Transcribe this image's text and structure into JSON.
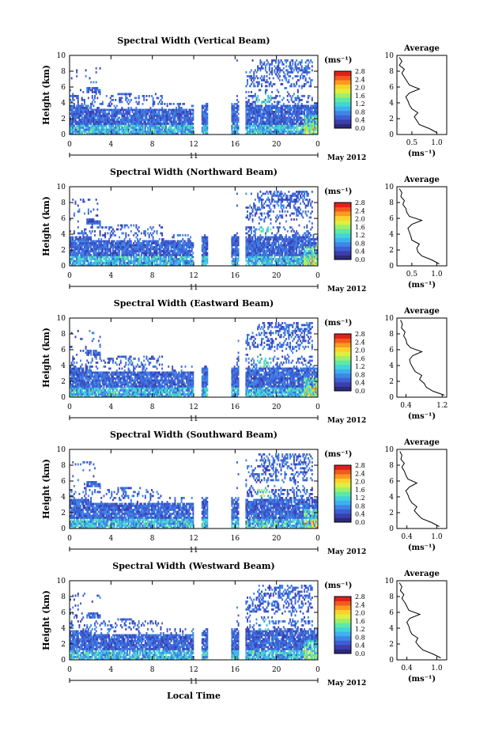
{
  "chart_data": [
    {
      "type": "heatmap",
      "title": "Spectral Width (Vertical Beam)",
      "ylabel": "Height (km)",
      "ylim": [
        0,
        10
      ],
      "y_ticks": [
        "0",
        "2",
        "4",
        "6",
        "8",
        "10"
      ],
      "xlim": [
        0,
        24
      ],
      "x_ticks": [
        "0",
        "4",
        "8",
        "12",
        "16",
        "20",
        "0"
      ],
      "date_labels": {
        "day": "11",
        "month_year": "May 2012"
      },
      "colorbar": {
        "unit": "(ms⁻¹)",
        "ticks": [
          "0.0",
          "0.4",
          "0.8",
          "1.2",
          "1.6",
          "2.0",
          "2.4",
          "2.8"
        ],
        "range": [
          0,
          2.8
        ]
      },
      "profile": {
        "title": "Average",
        "xlabel": "(ms⁻¹)",
        "x_ticks": [
          "0.5",
          "1.0"
        ],
        "xlim": [
          0.2,
          1.2
        ],
        "y": [
          0.25,
          0.75,
          1.25,
          1.75,
          2.25,
          2.75,
          3.25,
          3.75,
          4.25,
          4.75,
          5.25,
          5.75,
          6.25,
          6.75,
          7.25,
          7.75,
          8.25,
          8.75,
          9.25,
          9.75
        ],
        "x": [
          1.0,
          0.85,
          0.65,
          0.6,
          0.55,
          0.62,
          0.5,
          0.45,
          0.42,
          0.38,
          0.45,
          0.65,
          0.45,
          0.4,
          0.35,
          0.3,
          0.35,
          0.25,
          0.3,
          0.25
        ]
      }
    },
    {
      "type": "heatmap",
      "title": "Spectral Width (Northward Beam)",
      "ylabel": "Height (km)",
      "ylim": [
        0,
        10
      ],
      "y_ticks": [
        "0",
        "2",
        "4",
        "6",
        "8",
        "10"
      ],
      "xlim": [
        0,
        24
      ],
      "x_ticks": [
        "0",
        "4",
        "8",
        "12",
        "16",
        "20",
        "0"
      ],
      "date_labels": {
        "day": "11",
        "month_year": "May 2012"
      },
      "colorbar": {
        "unit": "(ms⁻¹)",
        "ticks": [
          "0.0",
          "0.4",
          "0.8",
          "1.2",
          "1.6",
          "2.0",
          "2.4",
          "2.8"
        ],
        "range": [
          0,
          2.8
        ]
      },
      "profile": {
        "title": "Average",
        "xlabel": "(ms⁻¹)",
        "x_ticks": [
          "0.5",
          "1.0"
        ],
        "xlim": [
          0.2,
          1.2
        ],
        "y": [
          0.25,
          0.75,
          1.25,
          1.75,
          2.25,
          2.75,
          3.25,
          3.75,
          4.25,
          4.75,
          5.25,
          5.75,
          6.25,
          6.75,
          7.25,
          7.75,
          8.25,
          8.75,
          9.25,
          9.75
        ],
        "x": [
          1.05,
          0.9,
          0.7,
          0.62,
          0.6,
          0.65,
          0.5,
          0.48,
          0.45,
          0.42,
          0.5,
          0.7,
          0.45,
          0.4,
          0.38,
          0.32,
          0.35,
          0.28,
          0.3,
          0.25
        ]
      }
    },
    {
      "type": "heatmap",
      "title": "Spectral Width (Eastward Beam)",
      "ylabel": "Height (km)",
      "ylim": [
        0,
        10
      ],
      "y_ticks": [
        "0",
        "2",
        "4",
        "6",
        "8",
        "10"
      ],
      "xlim": [
        0,
        24
      ],
      "x_ticks": [
        "0",
        "4",
        "8",
        "12",
        "16",
        "20",
        "0"
      ],
      "date_labels": {
        "day": "11",
        "month_year": "May 2012"
      },
      "colorbar": {
        "unit": "(ms⁻¹)",
        "ticks": [
          "0.0",
          "0.4",
          "0.8",
          "1.2",
          "1.6",
          "2.0",
          "2.4",
          "2.8"
        ],
        "range": [
          0,
          2.8
        ]
      },
      "profile": {
        "title": "Average",
        "xlabel": "(ms⁻¹)",
        "x_ticks": [
          "0.4",
          "1.2"
        ],
        "xlim": [
          0.2,
          1.3
        ],
        "y": [
          0.25,
          0.75,
          1.25,
          1.75,
          2.25,
          2.75,
          3.25,
          3.75,
          4.25,
          4.75,
          5.25,
          5.75,
          6.25,
          6.75,
          7.25,
          7.75,
          8.25,
          8.75,
          9.25,
          9.75
        ],
        "x": [
          1.25,
          1.0,
          0.85,
          0.8,
          0.7,
          0.75,
          0.6,
          0.55,
          0.5,
          0.48,
          0.55,
          0.75,
          0.5,
          0.42,
          0.4,
          0.35,
          0.38,
          0.3,
          0.32,
          0.28
        ]
      }
    },
    {
      "type": "heatmap",
      "title": "Spectral Width (Southward Beam)",
      "ylabel": "Height (km)",
      "ylim": [
        0,
        10
      ],
      "y_ticks": [
        "0",
        "2",
        "4",
        "6",
        "8",
        "10"
      ],
      "xlim": [
        0,
        24
      ],
      "x_ticks": [
        "0",
        "4",
        "8",
        "12",
        "16",
        "20",
        "0"
      ],
      "date_labels": {
        "day": "11",
        "month_year": "May 2012"
      },
      "colorbar": {
        "unit": "(ms⁻¹)",
        "ticks": [
          "0.0",
          "0.4",
          "0.8",
          "1.2",
          "1.6",
          "2.0",
          "2.4",
          "2.8"
        ],
        "range": [
          0,
          2.8
        ]
      },
      "profile": {
        "title": "Average",
        "xlabel": "(ms⁻¹)",
        "x_ticks": [
          "0.4",
          "1.0"
        ],
        "xlim": [
          0.2,
          1.2
        ],
        "y": [
          0.25,
          0.75,
          1.25,
          1.75,
          2.25,
          2.75,
          3.25,
          3.75,
          4.25,
          4.75,
          5.25,
          5.75,
          6.25,
          6.75,
          7.25,
          7.75,
          8.25,
          8.75,
          9.25,
          9.75
        ],
        "x": [
          1.05,
          0.9,
          0.7,
          0.62,
          0.55,
          0.6,
          0.5,
          0.45,
          0.42,
          0.38,
          0.45,
          0.6,
          0.42,
          0.38,
          0.35,
          0.3,
          0.35,
          0.28,
          0.3,
          0.26
        ]
      }
    },
    {
      "type": "heatmap",
      "title": "Spectral Width (Westward Beam)",
      "ylabel": "Height (km)",
      "xlabel": "Local Time",
      "ylim": [
        0,
        10
      ],
      "y_ticks": [
        "0",
        "2",
        "4",
        "6",
        "8",
        "10"
      ],
      "xlim": [
        0,
        24
      ],
      "x_ticks": [
        "0",
        "4",
        "8",
        "12",
        "16",
        "20",
        "0"
      ],
      "date_labels": {
        "day": "11",
        "month_year": "May 2012"
      },
      "colorbar": {
        "unit": "(ms⁻¹)",
        "ticks": [
          "0.0",
          "0.4",
          "0.8",
          "1.2",
          "1.6",
          "2.0",
          "2.4",
          "2.8"
        ],
        "range": [
          0,
          2.8
        ]
      },
      "profile": {
        "title": "Average",
        "xlabel": "(ms⁻¹)",
        "x_ticks": [
          "0.4",
          "1.0"
        ],
        "xlim": [
          0.2,
          1.2
        ],
        "y": [
          0.25,
          0.75,
          1.25,
          1.75,
          2.25,
          2.75,
          3.25,
          3.75,
          4.25,
          4.75,
          5.25,
          5.75,
          6.25,
          6.75,
          7.25,
          7.75,
          8.25,
          8.75,
          9.25,
          9.75
        ],
        "x": [
          1.08,
          0.92,
          0.72,
          0.64,
          0.58,
          0.62,
          0.5,
          0.46,
          0.44,
          0.4,
          0.46,
          0.66,
          0.44,
          0.4,
          0.36,
          0.3,
          0.34,
          0.27,
          0.3,
          0.25
        ]
      }
    }
  ],
  "colormap": [
    "#2c2a7a",
    "#3b3fae",
    "#3e5fd4",
    "#3f85e6",
    "#3fb0ee",
    "#43d4d8",
    "#5fe8a6",
    "#9ef06a",
    "#dfee40",
    "#fbd22c",
    "#fb9a20",
    "#f25a1c",
    "#e0201c"
  ]
}
